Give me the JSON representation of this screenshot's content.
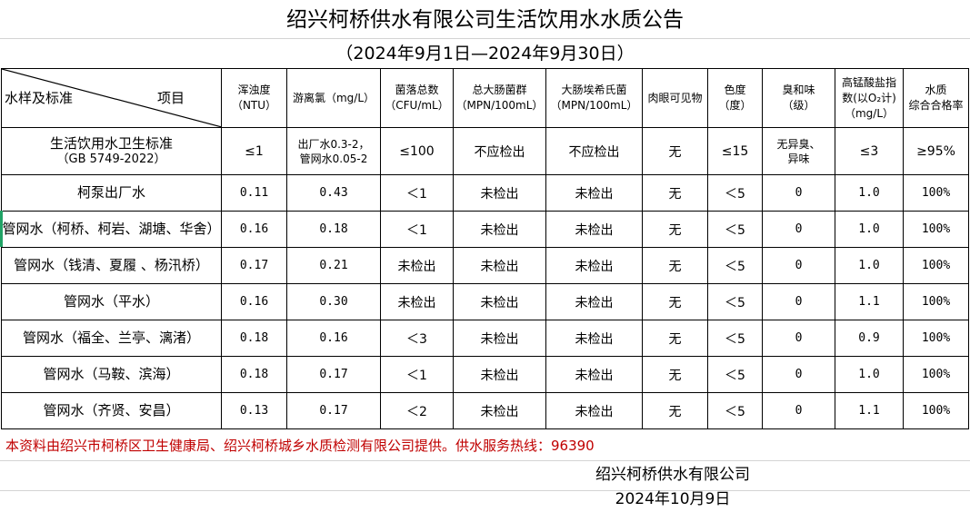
{
  "title": "绍兴柯桥供水有限公司生活饮用水水质公告",
  "subtitle": "（2024年9月1日—2024年9月30日）",
  "header": {
    "corner_left": "水样及标准",
    "corner_right": "项目",
    "columns": [
      [
        "浑浊度",
        "（NTU）"
      ],
      [
        "游离氯（mg/L）"
      ],
      [
        "菌落总数",
        "（CFU/mL）"
      ],
      [
        "总大肠菌群",
        "（MPN/100mL）"
      ],
      [
        "大肠埃希氏菌",
        "（MPN/100mL）"
      ],
      [
        "肉眼可见物"
      ],
      [
        "色度",
        "（度）"
      ],
      [
        "臭和味",
        "（级）"
      ],
      [
        "高锰酸盐指",
        "数(以O₂计)",
        "（mg/L）"
      ],
      [
        "水质",
        "综合合格率"
      ]
    ]
  },
  "standard": {
    "name": [
      "生活饮用水卫生标准",
      "（GB 5749-2022）"
    ],
    "values": [
      "≤1",
      "出厂水0.3-2，\n管网水0.05-2",
      "≤100",
      "不应检出",
      "不应检出",
      "无",
      "≤15",
      "无异臭、\n异味",
      "≤3",
      "≥95%"
    ]
  },
  "rows": [
    {
      "name": "柯泵出厂水",
      "values": [
        "0.11",
        "0.43",
        "＜1",
        "未检出",
        "未检出",
        "无",
        "＜5",
        "0",
        "1.0",
        "100%"
      ]
    },
    {
      "name": "管网水（柯桥、柯岩、湖塘、华舍）",
      "values": [
        "0.16",
        "0.18",
        "＜1",
        "未检出",
        "未检出",
        "无",
        "＜5",
        "0",
        "1.0",
        "100%"
      ]
    },
    {
      "name": "管网水（钱清、夏履 、杨汛桥）",
      "values": [
        "0.17",
        "0.21",
        "未检出",
        "未检出",
        "未检出",
        "无",
        "＜5",
        "0",
        "1.0",
        "100%"
      ]
    },
    {
      "name": "管网水（平水）",
      "values": [
        "0.16",
        "0.30",
        "未检出",
        "未检出",
        "未检出",
        "无",
        "＜5",
        "0",
        "1.1",
        "100%"
      ]
    },
    {
      "name": "管网水（福全、兰亭、漓渚）",
      "values": [
        "0.18",
        "0.16",
        "＜3",
        "未检出",
        "未检出",
        "无",
        "＜5",
        "0",
        "0.9",
        "100%"
      ]
    },
    {
      "name": "管网水（马鞍、滨海）",
      "values": [
        "0.18",
        "0.17",
        "＜1",
        "未检出",
        "未检出",
        "无",
        "＜5",
        "0",
        "1.0",
        "100%"
      ]
    },
    {
      "name": "管网水（齐贤、安昌）",
      "values": [
        "0.13",
        "0.17",
        "＜2",
        "未检出",
        "未检出",
        "无",
        "＜5",
        "0",
        "1.1",
        "100%"
      ]
    }
  ],
  "footer": {
    "note": "本资料由绍兴市柯桥区卫生健康局、绍兴柯桥城乡水质检测有限公司提供。供水服务热线：96390",
    "company": "绍兴柯桥供水有限公司",
    "date": "2024年10月9日"
  },
  "colors": {
    "note_text": "#c00000",
    "border": "#000000",
    "gridline": "#d4d4d4",
    "selection": "#21a366"
  }
}
